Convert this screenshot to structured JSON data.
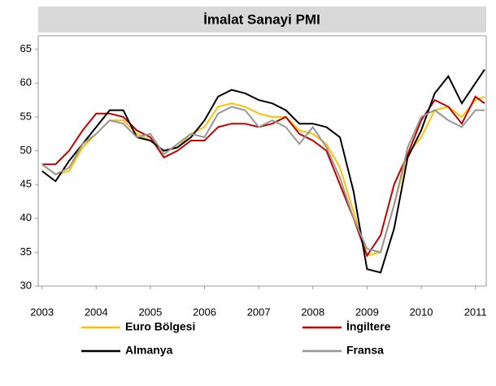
{
  "chart_data": {
    "type": "line",
    "title": "İmalat Sanayi  PMI",
    "x": [
      2003,
      2003.25,
      2003.5,
      2003.75,
      2004,
      2004.25,
      2004.5,
      2004.75,
      2005,
      2005.25,
      2005.5,
      2005.75,
      2006,
      2006.25,
      2006.5,
      2006.75,
      2007,
      2007.25,
      2007.5,
      2007.75,
      2008,
      2008.25,
      2008.5,
      2008.75,
      2009,
      2009.25,
      2009.5,
      2009.75,
      2010,
      2010.25,
      2010.5,
      2010.75,
      2011,
      2011.17
    ],
    "series": [
      {
        "name": "Euro Bölgesi",
        "color": "#ffc000",
        "values": [
          48,
          46.5,
          47,
          50.5,
          52.5,
          54.5,
          54.5,
          52.5,
          51.5,
          50,
          50.5,
          52.5,
          53.5,
          56.5,
          57,
          56.5,
          55.5,
          55,
          55,
          53,
          52.5,
          51,
          47.5,
          41,
          34.5,
          35,
          42,
          49.5,
          52,
          56,
          56.5,
          55,
          57.5,
          58
        ]
      },
      {
        "name": "İngiltere",
        "color": "#c00000",
        "values": [
          48,
          48,
          50,
          53,
          55.5,
          55.5,
          55,
          53,
          52,
          49,
          50,
          51.5,
          51.5,
          53.5,
          54,
          54,
          53.5,
          54,
          55,
          52.5,
          51.5,
          50,
          45,
          40,
          34.5,
          37.5,
          45,
          49.5,
          54.5,
          57.5,
          56.5,
          54,
          58,
          57
        ]
      },
      {
        "name": "Almanya",
        "color": "#000000",
        "values": [
          47,
          45.5,
          48.5,
          51,
          53.5,
          56,
          56,
          52,
          51.5,
          50,
          50.5,
          52,
          54.5,
          58,
          59,
          58.5,
          57.5,
          57,
          56,
          54,
          54,
          53.5,
          52,
          44,
          32.5,
          32,
          38.5,
          49,
          53,
          58.5,
          61,
          57,
          60,
          62
        ]
      },
      {
        "name": "Fransa",
        "color": "#969696",
        "values": [
          48,
          46.5,
          47.5,
          51,
          52.5,
          54.5,
          54,
          52,
          52.5,
          49.5,
          51,
          52.5,
          52,
          55.5,
          56.5,
          56,
          53.5,
          54.5,
          53.5,
          51,
          53.5,
          50.5,
          46,
          40,
          35.5,
          35,
          42,
          50.5,
          55,
          56,
          54.5,
          53.5,
          56,
          56
        ]
      }
    ],
    "xlim": [
      2002.93,
      2011.2
    ],
    "xticks": [
      2003,
      2004,
      2005,
      2006,
      2007,
      2008,
      2009,
      2010,
      2011
    ],
    "ylim": [
      30,
      67
    ],
    "yticks": [
      30,
      35,
      40,
      45,
      50,
      55,
      60,
      65
    ]
  }
}
